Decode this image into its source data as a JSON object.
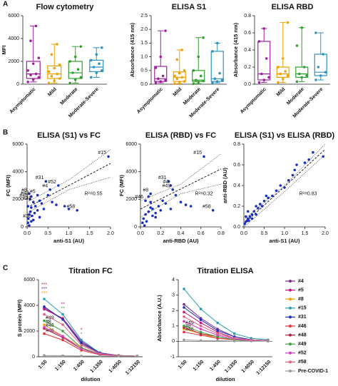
{
  "chart_data": [
    {
      "type": "box",
      "panel_label": "A",
      "title": "Flow cytometry",
      "ylabel": "MFI",
      "categories": [
        "Asymptomatic",
        "Mild",
        "Moderate",
        "Moderate-Severe"
      ],
      "colors": [
        "#a020a0",
        "#f0a000",
        "#30a030",
        "#3090c0"
      ],
      "boxes": [
        {
          "min": 200,
          "q1": 500,
          "median": 900,
          "q3": 2000,
          "max": 5100
        },
        {
          "min": 100,
          "q1": 500,
          "median": 900,
          "q3": 1600,
          "max": 3500
        },
        {
          "min": 100,
          "q1": 500,
          "median": 1000,
          "q3": 2000,
          "max": 3300
        },
        {
          "min": 600,
          "q1": 1100,
          "median": 1500,
          "q3": 2100,
          "max": 3200
        }
      ],
      "points": [
        [
          200,
          400,
          600,
          800,
          900,
          1200,
          1800,
          2300,
          3800,
          5100
        ],
        [
          100,
          300,
          500,
          700,
          900,
          1100,
          1400,
          1700,
          2600,
          3500
        ],
        [
          100,
          400,
          600,
          1000,
          1300,
          2000,
          2400,
          3300
        ],
        [
          600,
          1000,
          1200,
          1500,
          1800,
          2100,
          2600,
          3200
        ]
      ],
      "ylim": [
        0,
        6000
      ],
      "yticks": [
        0,
        2000,
        4000,
        6000
      ]
    },
    {
      "type": "box",
      "title": "ELISA S1",
      "ylabel": "Absorbance (415 nm)",
      "categories": [
        "Asymptomatic",
        "Mild",
        "Moderate",
        "Moderate-Severe"
      ],
      "colors": [
        "#a020a0",
        "#f0a000",
        "#30a030",
        "#3090c0"
      ],
      "boxes": [
        {
          "min": 0.05,
          "q1": 0.1,
          "median": 0.2,
          "q3": 0.65,
          "max": 1.95
        },
        {
          "min": 0.02,
          "q1": 0.1,
          "median": 0.25,
          "q3": 0.45,
          "max": 1.25
        },
        {
          "min": 0.02,
          "q1": 0.1,
          "median": 0.15,
          "q3": 0.5,
          "max": 1.7
        },
        {
          "min": 0.05,
          "q1": 0.1,
          "median": 0.2,
          "q3": 1.2,
          "max": 1.5
        }
      ],
      "points": [
        [
          0.05,
          0.1,
          0.15,
          0.2,
          0.3,
          0.6,
          1.0,
          1.95
        ],
        [
          0.02,
          0.08,
          0.1,
          0.2,
          0.25,
          0.3,
          0.4,
          0.5,
          0.9,
          1.25
        ],
        [
          0.02,
          0.08,
          0.12,
          0.15,
          0.3,
          0.5,
          1.0,
          1.7
        ],
        [
          0.05,
          0.1,
          0.15,
          0.2,
          0.4,
          1.2,
          1.5
        ]
      ],
      "ylim": [
        0,
        2.5
      ],
      "yticks": [
        {
          "value": 0,
          "label": "0.0"
        },
        0.5,
        {
          "value": 1,
          "label": "1.0"
        },
        1.5,
        {
          "value": 2,
          "label": "2.0"
        },
        2.5
      ]
    },
    {
      "type": "box",
      "title": "ELISA RBD",
      "ylabel": "Absorbance (415 nm)",
      "categories": [
        "Asymptomatic",
        "Mild",
        "Moderate",
        "Moderate-Severe"
      ],
      "colors": [
        "#a020a0",
        "#f0a000",
        "#30a030",
        "#3090c0"
      ],
      "boxes": [
        {
          "min": 0.02,
          "q1": 0.05,
          "median": 0.12,
          "q3": 0.5,
          "max": 0.65
        },
        {
          "min": 0.02,
          "q1": 0.08,
          "median": 0.12,
          "q3": 0.2,
          "max": 0.72
        },
        {
          "min": 0.03,
          "q1": 0.08,
          "median": 0.12,
          "q3": 0.2,
          "max": 0.66
        },
        {
          "min": 0.05,
          "q1": 0.1,
          "median": 0.14,
          "q3": 0.35,
          "max": 0.6
        }
      ],
      "points": [
        [
          0.02,
          0.05,
          0.08,
          0.12,
          0.3,
          0.5,
          0.65
        ],
        [
          0.02,
          0.06,
          0.1,
          0.12,
          0.15,
          0.2,
          0.3,
          0.72
        ],
        [
          0.03,
          0.08,
          0.1,
          0.12,
          0.2,
          0.45,
          0.66
        ],
        [
          0.05,
          0.1,
          0.14,
          0.2,
          0.35,
          0.6
        ]
      ],
      "ylim": [
        0,
        0.8
      ],
      "yticks": [
        {
          "value": 0,
          "label": "0.0"
        },
        0.2,
        0.4,
        0.6,
        0.8
      ]
    },
    {
      "type": "scatter",
      "panel_label": "B",
      "title": "ELISA (S1) vs FC",
      "xlabel": "anti-S1 (AU)",
      "ylabel": "FC (MFI)",
      "x": [
        1.95,
        0.75,
        0.45,
        0.55,
        0.05,
        0.07,
        0.25,
        0.1,
        0.15,
        0.15,
        1.2,
        0.02,
        0.03,
        0.05,
        0.08,
        0.1,
        0.12,
        0.18,
        0.2,
        0.25,
        0.3,
        0.35,
        0.4,
        0.5,
        0.6,
        0.7,
        0.9,
        1.0,
        0.05,
        0.1,
        0.3,
        0.02
      ],
      "y": [
        5100,
        3000,
        3300,
        2700,
        2400,
        2000,
        2300,
        2200,
        1800,
        500,
        1200,
        300,
        600,
        900,
        1100,
        1400,
        800,
        1000,
        1500,
        1200,
        1900,
        1700,
        1300,
        2300,
        1800,
        1600,
        1500,
        1300,
        100,
        400,
        700,
        1500
      ],
      "point_labels": [
        "#15",
        "#52",
        "#31",
        "#4",
        "#8",
        "#46",
        "#5",
        "#49",
        "#48",
        "#36",
        "#58",
        null,
        null,
        null,
        null,
        null,
        null,
        null,
        null,
        null,
        null,
        null,
        null,
        null,
        null,
        null,
        null,
        null,
        null,
        null,
        null,
        null
      ],
      "color": "#1a2fc0",
      "fit": {
        "x": [
          0,
          2
        ],
        "y": [
          1400,
          4600
        ]
      },
      "ci_upper": {
        "x": [
          0,
          1,
          2
        ],
        "y": [
          1800,
          3400,
          5600
        ]
      },
      "ci_lower": {
        "x": [
          0,
          1,
          2
        ],
        "y": [
          1000,
          2700,
          3600
        ]
      },
      "r2": "R²=0.55",
      "xlim": [
        0,
        2
      ],
      "xticks": [
        {
          "value": 0,
          "label": "0.0"
        },
        0.5,
        {
          "value": 1,
          "label": "1.0"
        },
        1.5,
        {
          "value": 2,
          "label": "2.0"
        }
      ],
      "ylim": [
        0,
        6000
      ],
      "yticks": [
        0,
        2000,
        4000,
        6000
      ]
    },
    {
      "type": "scatter",
      "title": "ELISA (RBD) vs FC",
      "xlabel": "anti-RBD (AU)",
      "ylabel": "FC (MFI)",
      "x": [
        0.63,
        0.28,
        0.3,
        0.32,
        0.1,
        0.05,
        0.72,
        0.02,
        0.03,
        0.05,
        0.08,
        0.1,
        0.12,
        0.15,
        0.18,
        0.2,
        0.22,
        0.25,
        0.12,
        0.35,
        0.4,
        0.45,
        0.5,
        0.3,
        0.04,
        0.06,
        0.15,
        0.08,
        0.1
      ],
      "y": [
        5100,
        3300,
        3000,
        2700,
        2400,
        1900,
        1200,
        300,
        600,
        900,
        1100,
        1400,
        800,
        1000,
        1500,
        1200,
        1900,
        1700,
        1300,
        2300,
        1800,
        1600,
        1500,
        1300,
        100,
        400,
        700,
        2200,
        1800
      ],
      "point_labels": [
        "#15",
        "#31",
        "#4",
        "#49",
        "#8",
        "#46",
        "#58",
        null,
        null,
        null,
        null,
        null,
        null,
        null,
        null,
        null,
        null,
        null,
        null,
        null,
        null,
        null,
        null,
        null,
        null,
        null,
        null,
        null,
        null
      ],
      "color": "#1a2fc0",
      "fit": {
        "x": [
          0,
          0.8
        ],
        "y": [
          1300,
          4200
        ]
      },
      "ci_upper": {
        "x": [
          0,
          0.4,
          0.8
        ],
        "y": [
          1900,
          3100,
          5300
        ]
      },
      "ci_lower": {
        "x": [
          0,
          0.4,
          0.8
        ],
        "y": [
          700,
          2400,
          3100
        ]
      },
      "r2": "R²=0.32",
      "xlim": [
        0,
        0.8
      ],
      "xticks": [
        {
          "value": 0,
          "label": "0.0"
        },
        0.2,
        0.4,
        0.6,
        0.8
      ],
      "ylim": [
        0,
        6000
      ],
      "yticks": [
        0,
        2000,
        4000,
        6000
      ]
    },
    {
      "type": "scatter",
      "title": "ELISA (S1) vs ELISA (RBD)",
      "xlabel": "anti-S1 (AU)",
      "ylabel": "anti-RBD (AU)",
      "x": [
        0.02,
        0.05,
        0.08,
        0.1,
        0.12,
        0.15,
        0.2,
        0.2,
        0.25,
        0.3,
        0.3,
        0.35,
        0.4,
        0.45,
        0.5,
        0.55,
        0.6,
        0.7,
        0.8,
        0.9,
        1.0,
        1.1,
        1.2,
        1.25,
        1.3,
        1.5,
        1.6,
        1.7,
        1.95,
        0.05,
        0.1
      ],
      "y": [
        0.03,
        0.05,
        0.06,
        0.08,
        0.06,
        0.1,
        0.12,
        0.08,
        0.15,
        0.12,
        0.2,
        0.18,
        0.22,
        0.2,
        0.25,
        0.3,
        0.28,
        0.3,
        0.35,
        0.4,
        0.38,
        0.45,
        0.5,
        0.55,
        0.6,
        0.62,
        0.65,
        0.72,
        0.68,
        0.1,
        0.15
      ],
      "color": "#1a2fc0",
      "fit": {
        "x": [
          0,
          2
        ],
        "y": [
          0.03,
          0.75
        ]
      },
      "ci_upper": {
        "x": [
          0,
          1,
          2
        ],
        "y": [
          0.07,
          0.4,
          0.8
        ]
      },
      "ci_lower": {
        "x": [
          0,
          1,
          2
        ],
        "y": [
          0,
          0.34,
          0.7
        ]
      },
      "r2": "R²=0.83",
      "xlim": [
        0,
        2
      ],
      "xticks": [
        {
          "value": 0,
          "label": "0.0"
        },
        0.5,
        {
          "value": 1,
          "label": "1.0"
        },
        1.5,
        {
          "value": 2,
          "label": "2.0"
        }
      ],
      "ylim": [
        0,
        0.8
      ],
      "yticks": [
        {
          "value": 0,
          "label": "0.0"
        },
        0.2,
        0.4,
        0.6,
        0.8
      ]
    },
    {
      "type": "line",
      "panel_label": "C",
      "title": "Titration FC",
      "xlabel": "dilution",
      "ylabel": "S protein (MFI)",
      "categories": [
        "1:50",
        "1:150",
        "1:450",
        "1:1350",
        "1:4050",
        "1:12150"
      ],
      "series": [
        {
          "color": "#7b2d8e",
          "values": [
            3800,
            2900,
            1000,
            300,
            100,
            50
          ]
        },
        {
          "color": "#c71585",
          "values": [
            3700,
            3000,
            1200,
            300,
            100,
            50
          ]
        },
        {
          "color": "#f0a000",
          "values": [
            2500,
            1600,
            700,
            200,
            100,
            50
          ],
          "label": "#8"
        },
        {
          "color": "#2a9db0",
          "values": [
            4500,
            3300,
            1300,
            300,
            100,
            50
          ]
        },
        {
          "color": "#2030c0",
          "values": [
            3900,
            2900,
            1100,
            300,
            100,
            50
          ]
        },
        {
          "color": "#e0303a",
          "values": [
            1800,
            1300,
            500,
            150,
            80,
            50
          ],
          "label": "#46"
        },
        {
          "color": "#b02040",
          "values": [
            2200,
            1500,
            600,
            200,
            80,
            50
          ],
          "label": "#48"
        },
        {
          "color": "#40a040",
          "values": [
            2800,
            2000,
            700,
            200,
            100,
            50
          ],
          "label": "#49"
        },
        {
          "color": "#d040c0",
          "values": [
            2300,
            1600,
            600,
            200,
            80,
            50
          ]
        },
        {
          "color": "#e06080",
          "values": [
            3300,
            2500,
            900,
            250,
            100,
            50
          ]
        },
        {
          "color": "#999999",
          "values": [
            100,
            80,
            60,
            50,
            50,
            50
          ]
        }
      ],
      "significance": [
        [
          {
            "text": "***",
            "color": "#c71585"
          },
          {
            "text": "***",
            "color": "#7b2d8e"
          },
          {
            "text": "***",
            "color": "#f0a000"
          }
        ],
        [
          {
            "text": "**",
            "color": "#c71585"
          },
          {
            "text": "**",
            "color": "#40a040"
          }
        ],
        [
          {
            "text": "*",
            "color": "#c71585"
          },
          {
            "text": "*",
            "color": "#40a040"
          }
        ],
        [],
        [],
        []
      ],
      "ylim": [
        0,
        6000
      ],
      "yticks": [
        0,
        2000,
        4000,
        6000
      ]
    },
    {
      "type": "line",
      "title": "Titration ELISA",
      "xlabel": "dilution",
      "ylabel": "Absorbance (A.U.)",
      "categories": [
        "1:50",
        "1:150",
        "1:450",
        "1:1350",
        "1:4050",
        "1:12150"
      ],
      "series": [
        {
          "name": "#4",
          "color": "#7b2d8e",
          "values": [
            2.4,
            1.5,
            0.8,
            0.3,
            0.1,
            0.05
          ]
        },
        {
          "name": "#5",
          "color": "#c71585",
          "values": [
            1.9,
            1.2,
            0.6,
            0.2,
            0.1,
            0.05
          ]
        },
        {
          "name": "#8",
          "color": "#f0a000",
          "values": [
            0.8,
            0.5,
            0.2,
            0.1,
            0.05,
            0.02
          ],
          "label_start": true
        },
        {
          "name": "#15",
          "color": "#2a9db0",
          "values": [
            3.4,
            2.1,
            1.2,
            0.5,
            0.2,
            0.1
          ]
        },
        {
          "name": "#31",
          "color": "#2030c0",
          "values": [
            2.2,
            1.4,
            0.7,
            0.3,
            0.1,
            0.05
          ]
        },
        {
          "name": "#46",
          "color": "#e0303a",
          "values": [
            0.6,
            0.4,
            0.2,
            0.1,
            0.05,
            0.02
          ],
          "label_start": true
        },
        {
          "name": "#48",
          "color": "#b02040",
          "values": [
            0.9,
            0.5,
            0.3,
            0.1,
            0.05,
            0.02
          ]
        },
        {
          "name": "#49",
          "color": "#40a040",
          "values": [
            1.0,
            0.6,
            0.3,
            0.1,
            0.05,
            0.02
          ],
          "label_start": true
        },
        {
          "name": "#52",
          "color": "#d040c0",
          "values": [
            1.3,
            0.8,
            0.4,
            0.15,
            0.05,
            0.02
          ]
        },
        {
          "name": "#58",
          "color": "#e06080",
          "values": [
            1.6,
            1.0,
            0.5,
            0.2,
            0.1,
            0.05
          ]
        },
        {
          "name": "Pre-COVID-1",
          "color": "#999999",
          "values": [
            0.1,
            0.05,
            0.05,
            0.02,
            0.02,
            0.02
          ]
        }
      ],
      "legend": true,
      "ylim": [
        -1,
        4
      ],
      "yticks": [
        -1,
        0,
        1,
        2,
        3,
        4
      ]
    }
  ]
}
